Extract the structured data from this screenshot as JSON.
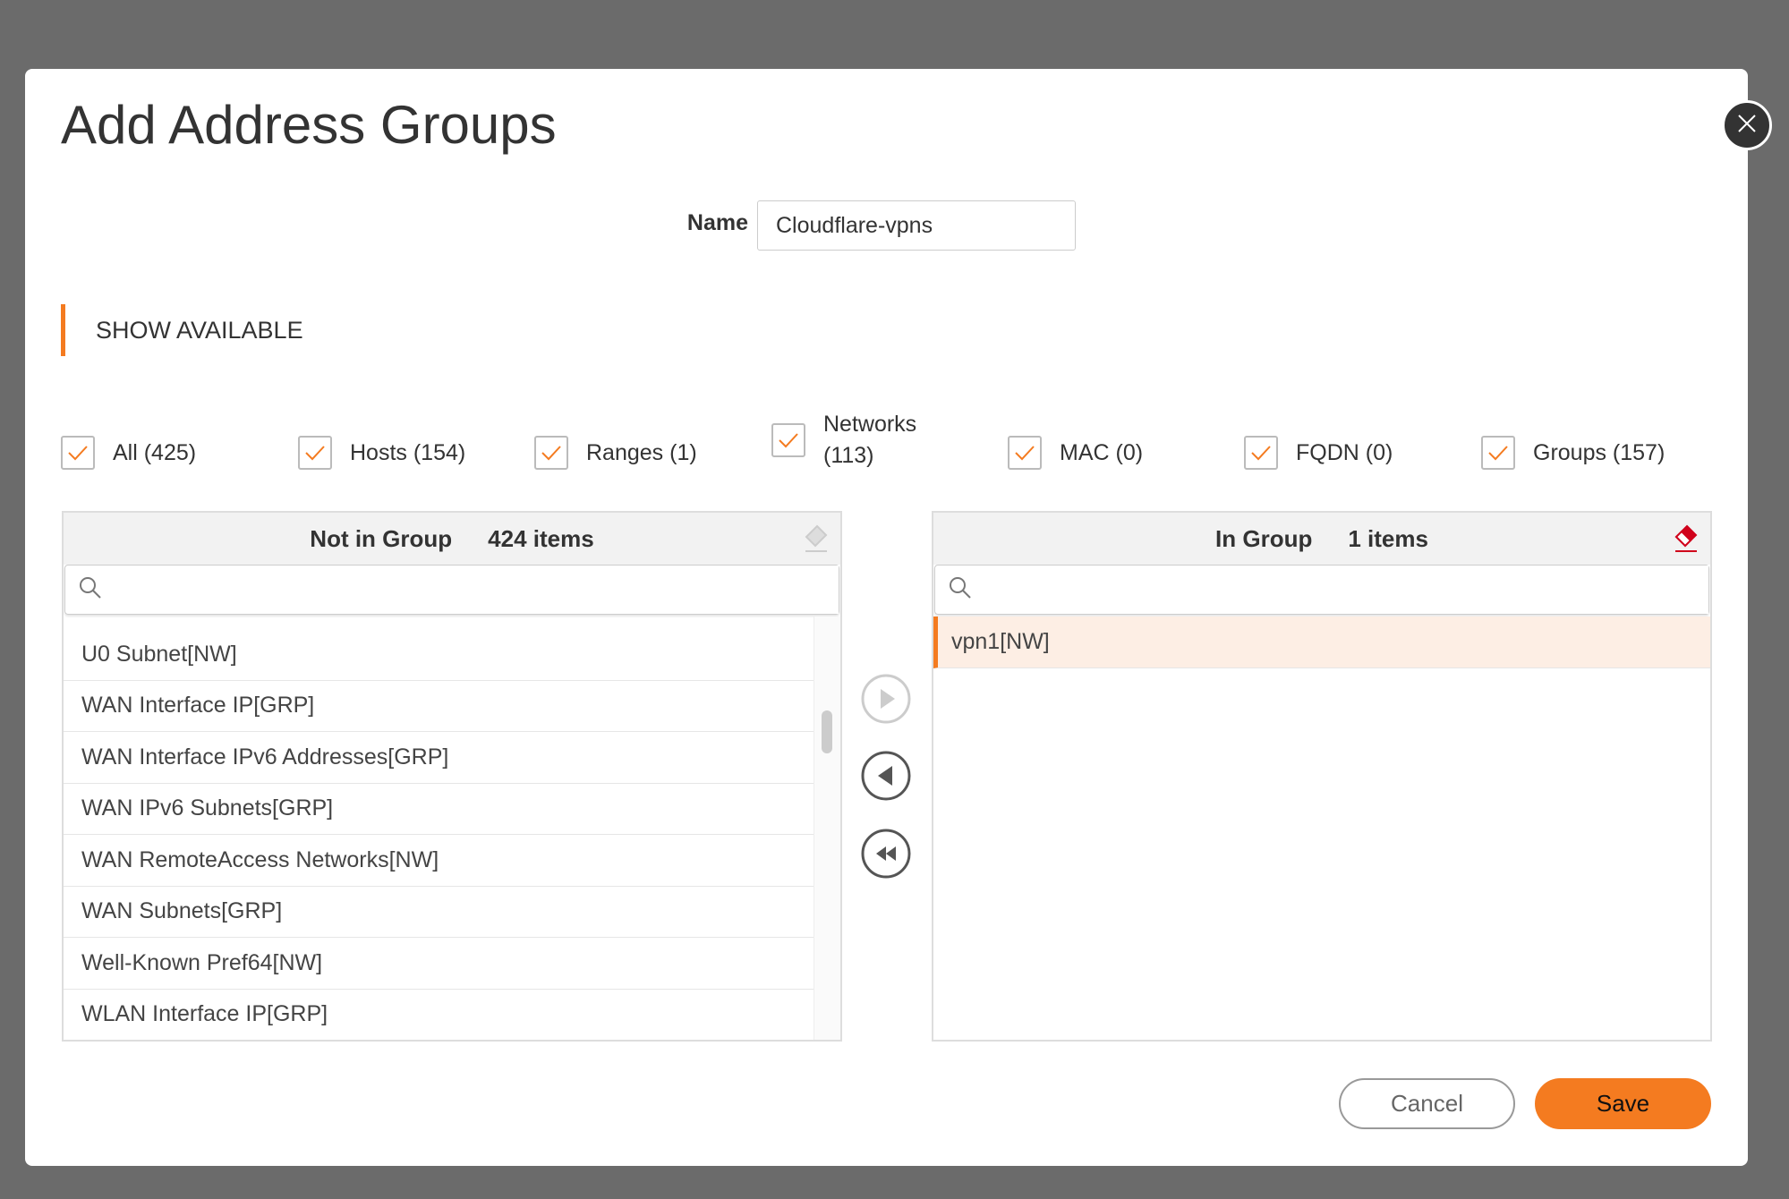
{
  "dialog": {
    "title": "Add Address Groups",
    "name_label": "Name",
    "name_value": "Cloudflare-vpns",
    "section_label": "SHOW AVAILABLE"
  },
  "filters": [
    {
      "label": "All (425)",
      "checked": true
    },
    {
      "label": "Hosts (154)",
      "checked": true
    },
    {
      "label": "Ranges (1)",
      "checked": true
    },
    {
      "label": "Networks (113)",
      "line1": "Networks",
      "line2": "(113)",
      "checked": true
    },
    {
      "label": "MAC (0)",
      "checked": true
    },
    {
      "label": "FQDN (0)",
      "checked": true
    },
    {
      "label": "Groups (157)",
      "checked": true
    }
  ],
  "left": {
    "title": "Not in Group",
    "count": "424 items",
    "search_value": "",
    "items": [
      "U0 Subnet[NW]",
      "WAN Interface IP[GRP]",
      "WAN Interface IPv6 Addresses[GRP]",
      "WAN IPv6 Subnets[GRP]",
      "WAN RemoteAccess Networks[NW]",
      "WAN Subnets[GRP]",
      "Well-Known Pref64[NW]",
      "WLAN Interface IP[GRP]"
    ]
  },
  "right": {
    "title": "In Group",
    "count": "1 items",
    "search_value": "",
    "items": [
      "vpn1[NW]"
    ]
  },
  "buttons": {
    "cancel": "Cancel",
    "save": "Save"
  },
  "colors": {
    "accent": "#f47b20",
    "selected_row": "#fdeee4",
    "eraser_active": "#d0021b"
  }
}
